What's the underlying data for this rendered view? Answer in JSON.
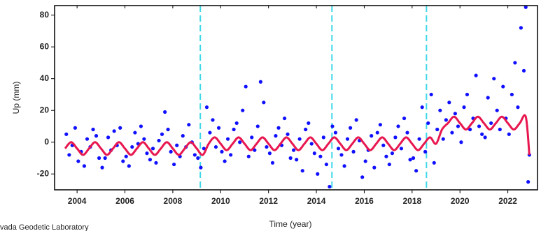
{
  "chart_data": {
    "type": "scatter",
    "xlabel": "Time (year)",
    "ylabel": "Up (mm)",
    "footer": "vada Geodetic Laboratory",
    "xlim": [
      2003.06,
      2023.24
    ],
    "ylim": [
      -30,
      86
    ],
    "xticks": [
      2004,
      2006,
      2008,
      2010,
      2012,
      2014,
      2016,
      2018,
      2020,
      2022
    ],
    "yticks": [
      -20,
      0,
      20,
      40,
      60,
      80
    ],
    "points": {
      "color": "#1010ff",
      "x": [
        2003.55,
        2003.67,
        2003.8,
        2003.92,
        2004.05,
        2004.17,
        2004.3,
        2004.42,
        2004.55,
        2004.67,
        2004.8,
        2004.92,
        2005.05,
        2005.17,
        2005.3,
        2005.42,
        2005.55,
        2005.67,
        2005.8,
        2005.92,
        2006.05,
        2006.17,
        2006.3,
        2006.42,
        2006.55,
        2006.67,
        2006.8,
        2006.92,
        2007.05,
        2007.17,
        2007.3,
        2007.42,
        2007.55,
        2007.67,
        2007.8,
        2007.92,
        2008.05,
        2008.17,
        2008.3,
        2008.42,
        2008.55,
        2008.67,
        2008.8,
        2008.92,
        2009.05,
        2009.17,
        2009.3,
        2009.42,
        2009.55,
        2009.67,
        2009.8,
        2009.92,
        2010.05,
        2010.17,
        2010.3,
        2010.42,
        2010.55,
        2010.67,
        2010.8,
        2010.92,
        2011.05,
        2011.17,
        2011.3,
        2011.42,
        2011.55,
        2011.67,
        2011.8,
        2011.92,
        2012.05,
        2012.17,
        2012.3,
        2012.42,
        2012.55,
        2012.67,
        2012.8,
        2012.92,
        2013.05,
        2013.17,
        2013.3,
        2013.42,
        2013.55,
        2013.67,
        2013.8,
        2013.92,
        2014.05,
        2014.17,
        2014.3,
        2014.42,
        2014.55,
        2014.67,
        2014.8,
        2014.92,
        2015.05,
        2015.17,
        2015.3,
        2015.42,
        2015.55,
        2015.67,
        2015.8,
        2015.92,
        2016.05,
        2016.17,
        2016.3,
        2016.42,
        2016.55,
        2016.67,
        2016.8,
        2016.92,
        2017.05,
        2017.17,
        2017.3,
        2017.42,
        2017.55,
        2017.67,
        2017.8,
        2017.92,
        2018.05,
        2018.17,
        2018.3,
        2018.42,
        2018.55,
        2018.67,
        2018.8,
        2018.92,
        2019.05,
        2019.17,
        2019.3,
        2019.42,
        2019.55,
        2019.67,
        2019.8,
        2019.92,
        2020.05,
        2020.17,
        2020.3,
        2020.42,
        2020.55,
        2020.67,
        2020.8,
        2020.92,
        2021.05,
        2021.17,
        2021.3,
        2021.42,
        2021.55,
        2021.67,
        2021.8,
        2021.92,
        2022.05,
        2022.17,
        2022.3,
        2022.42,
        2022.55,
        2022.67,
        2022.75,
        2022.85,
        2022.9
      ],
      "values": [
        5,
        -8,
        -2,
        9,
        -12,
        -6,
        -15,
        2,
        -3,
        8,
        4,
        -10,
        -16,
        -10,
        3,
        -5,
        7,
        -2,
        9,
        -12,
        -9,
        -15,
        -3,
        6,
        -1,
        10,
        2,
        -7,
        -11,
        -4,
        -13,
        1,
        5,
        19,
        8,
        -6,
        -14,
        -2,
        -9,
        4,
        -3,
        11,
        0,
        -8,
        -10,
        -16,
        -4,
        22,
        6,
        14,
        -3,
        9,
        -6,
        -12,
        2,
        -8,
        8,
        12,
        0,
        20,
        35,
        -9,
        3,
        -5,
        10,
        38,
        25,
        -3,
        -7,
        -13,
        4,
        9,
        -2,
        15,
        5,
        -10,
        -5,
        -11,
        2,
        -18,
        8,
        12,
        -1,
        -7,
        -20,
        -9,
        3,
        -14,
        -28,
        10,
        6,
        -4,
        -8,
        -15,
        2,
        9,
        -6,
        14,
        1,
        -22,
        -12,
        -5,
        4,
        -16,
        6,
        11,
        -2,
        -9,
        -14,
        -7,
        3,
        10,
        -4,
        15,
        6,
        -11,
        -10,
        -18,
        2,
        22,
        -6,
        12,
        30,
        -13,
        8,
        20,
        2,
        14,
        25,
        6,
        18,
        10,
        0,
        22,
        30,
        8,
        15,
        42,
        10,
        5,
        3,
        28,
        12,
        40,
        20,
        8,
        35,
        15,
        5,
        30,
        50,
        22,
        72,
        45,
        85,
        -25,
        -8
      ]
    },
    "model": {
      "color": "#e8174f",
      "x": [
        2003.5,
        2003.75,
        2004,
        2004.25,
        2004.5,
        2004.75,
        2005,
        2005.25,
        2005.5,
        2005.75,
        2006,
        2006.25,
        2006.5,
        2006.75,
        2007,
        2007.25,
        2007.5,
        2007.75,
        2008,
        2008.25,
        2008.5,
        2008.75,
        2009,
        2009.25,
        2009.5,
        2009.75,
        2010,
        2010.25,
        2010.5,
        2010.75,
        2011,
        2011.25,
        2011.5,
        2011.75,
        2012,
        2012.25,
        2012.5,
        2012.75,
        2013,
        2013.25,
        2013.5,
        2013.75,
        2014,
        2014.25,
        2014.5,
        2014.75,
        2015,
        2015.25,
        2015.5,
        2015.75,
        2016,
        2016.25,
        2016.5,
        2016.75,
        2017,
        2017.25,
        2017.5,
        2017.75,
        2018,
        2018.25,
        2018.5,
        2018.75,
        2019,
        2019.25,
        2019.5,
        2019.75,
        2020,
        2020.25,
        2020.5,
        2020.75,
        2021,
        2021.25,
        2021.5,
        2021.75,
        2022,
        2022.25,
        2022.5,
        2022.75,
        2022.9
      ],
      "values": [
        -4,
        0,
        -4,
        -8,
        -4,
        0,
        -4,
        -8,
        -4,
        0,
        -4,
        -8,
        -4,
        0,
        -4,
        -8,
        -4,
        0,
        -4,
        -8,
        -4,
        0,
        -4,
        -8,
        -1,
        3,
        -1,
        -5,
        -1,
        3,
        -1,
        -5,
        -1,
        3,
        -1,
        -5,
        -1,
        3,
        -1,
        -5,
        -1,
        3,
        -1,
        -5,
        -1,
        3,
        -1,
        -5,
        -1,
        3,
        -1,
        -5,
        -1,
        3,
        -1,
        -5,
        -1,
        3,
        -1,
        -5,
        -1,
        3,
        -1,
        8,
        12,
        16,
        12,
        8,
        12,
        16,
        12,
        8,
        12,
        16,
        12,
        8,
        12,
        16,
        -8
      ]
    },
    "events": {
      "color": "#3fd8e8",
      "x": [
        2009.15,
        2014.65,
        2018.6
      ]
    }
  }
}
